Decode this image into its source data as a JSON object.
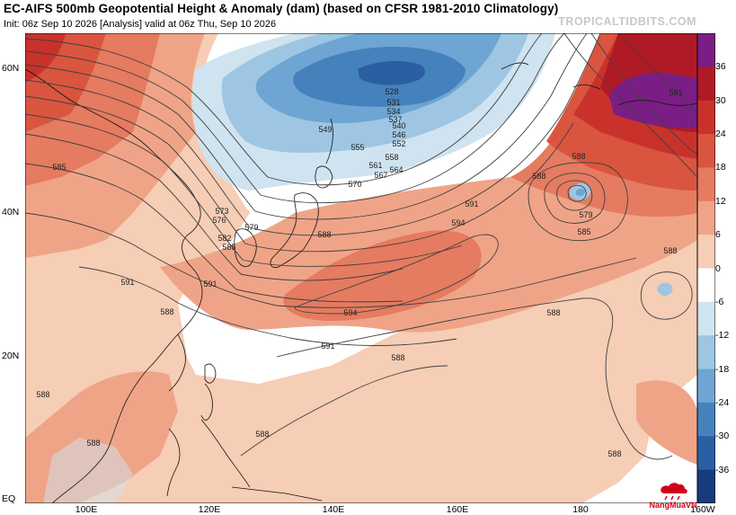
{
  "header": {
    "title": "EC-AIFS 500mb Geopotential Height & Anomaly (dam) (based on CFSR 1981-2010 Climatology)",
    "subtitle": "Init: 06z Sep 10 2026   [Analysis]   valid at 06z Thu, Sep 10 2026",
    "site": "TROPICALTIDBITS.COM"
  },
  "axes": {
    "lat_labels": [
      "60N",
      "40N",
      "20N",
      "EQ"
    ],
    "lon_labels": [
      "100E",
      "120E",
      "140E",
      "160E",
      "180",
      "160W"
    ]
  },
  "colorbar": {
    "labels": [
      "36",
      "30",
      "24",
      "18",
      "12",
      "6",
      "0",
      "-6",
      "-12",
      "-18",
      "-24",
      "-30",
      "-36"
    ],
    "colors": [
      "#7a1e85",
      "#b01a26",
      "#c9322b",
      "#d9553f",
      "#e57b60",
      "#efa487",
      "#f6cdb5",
      "#ffffff",
      "#cfe3f0",
      "#9ec6e2",
      "#6ea5d2",
      "#4582bd",
      "#2b5fa3",
      "#173b7c"
    ]
  },
  "contours": {
    "labels": [
      "528",
      "531",
      "534",
      "537",
      "540",
      "546",
      "549",
      "552",
      "555",
      "558",
      "561",
      "564",
      "567",
      "570",
      "573",
      "576",
      "579",
      "582",
      "585",
      "588",
      "591",
      "594",
      "579",
      "585",
      "588",
      "588",
      "591",
      "588",
      "591",
      "594",
      "591",
      "588",
      "588",
      "588",
      "588",
      "588",
      "588",
      "591",
      "585",
      "588"
    ]
  },
  "watermark": {
    "text": "NangMuaVN"
  }
}
